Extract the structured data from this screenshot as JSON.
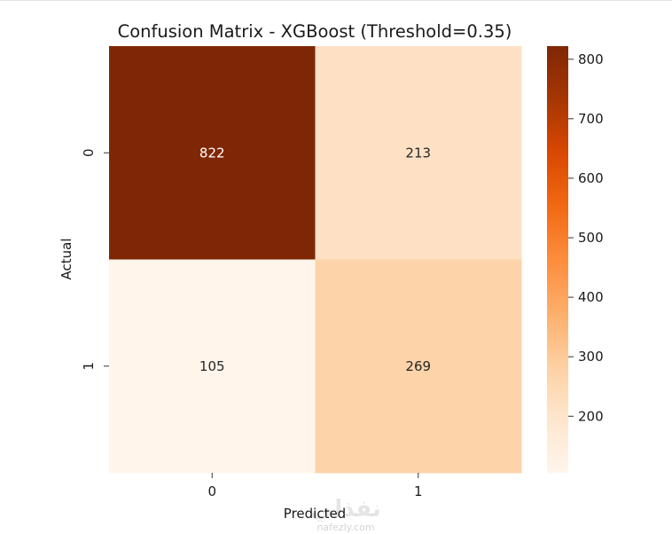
{
  "chart_data": {
    "type": "heatmap",
    "title": "Confusion Matrix - XGBoost (Threshold=0.35)",
    "xlabel": "Predicted",
    "ylabel": "Actual",
    "x_categories": [
      "0",
      "1"
    ],
    "y_categories": [
      "0",
      "1"
    ],
    "values": [
      [
        822,
        213
      ],
      [
        105,
        269
      ]
    ],
    "colormap": "Oranges",
    "colorbar": {
      "min": 105,
      "max": 822,
      "ticks": [
        200,
        300,
        400,
        500,
        600,
        700,
        800
      ]
    },
    "annotations": true
  },
  "watermark": {
    "arabic": "نفذلي",
    "latin": "nafezly.com"
  }
}
